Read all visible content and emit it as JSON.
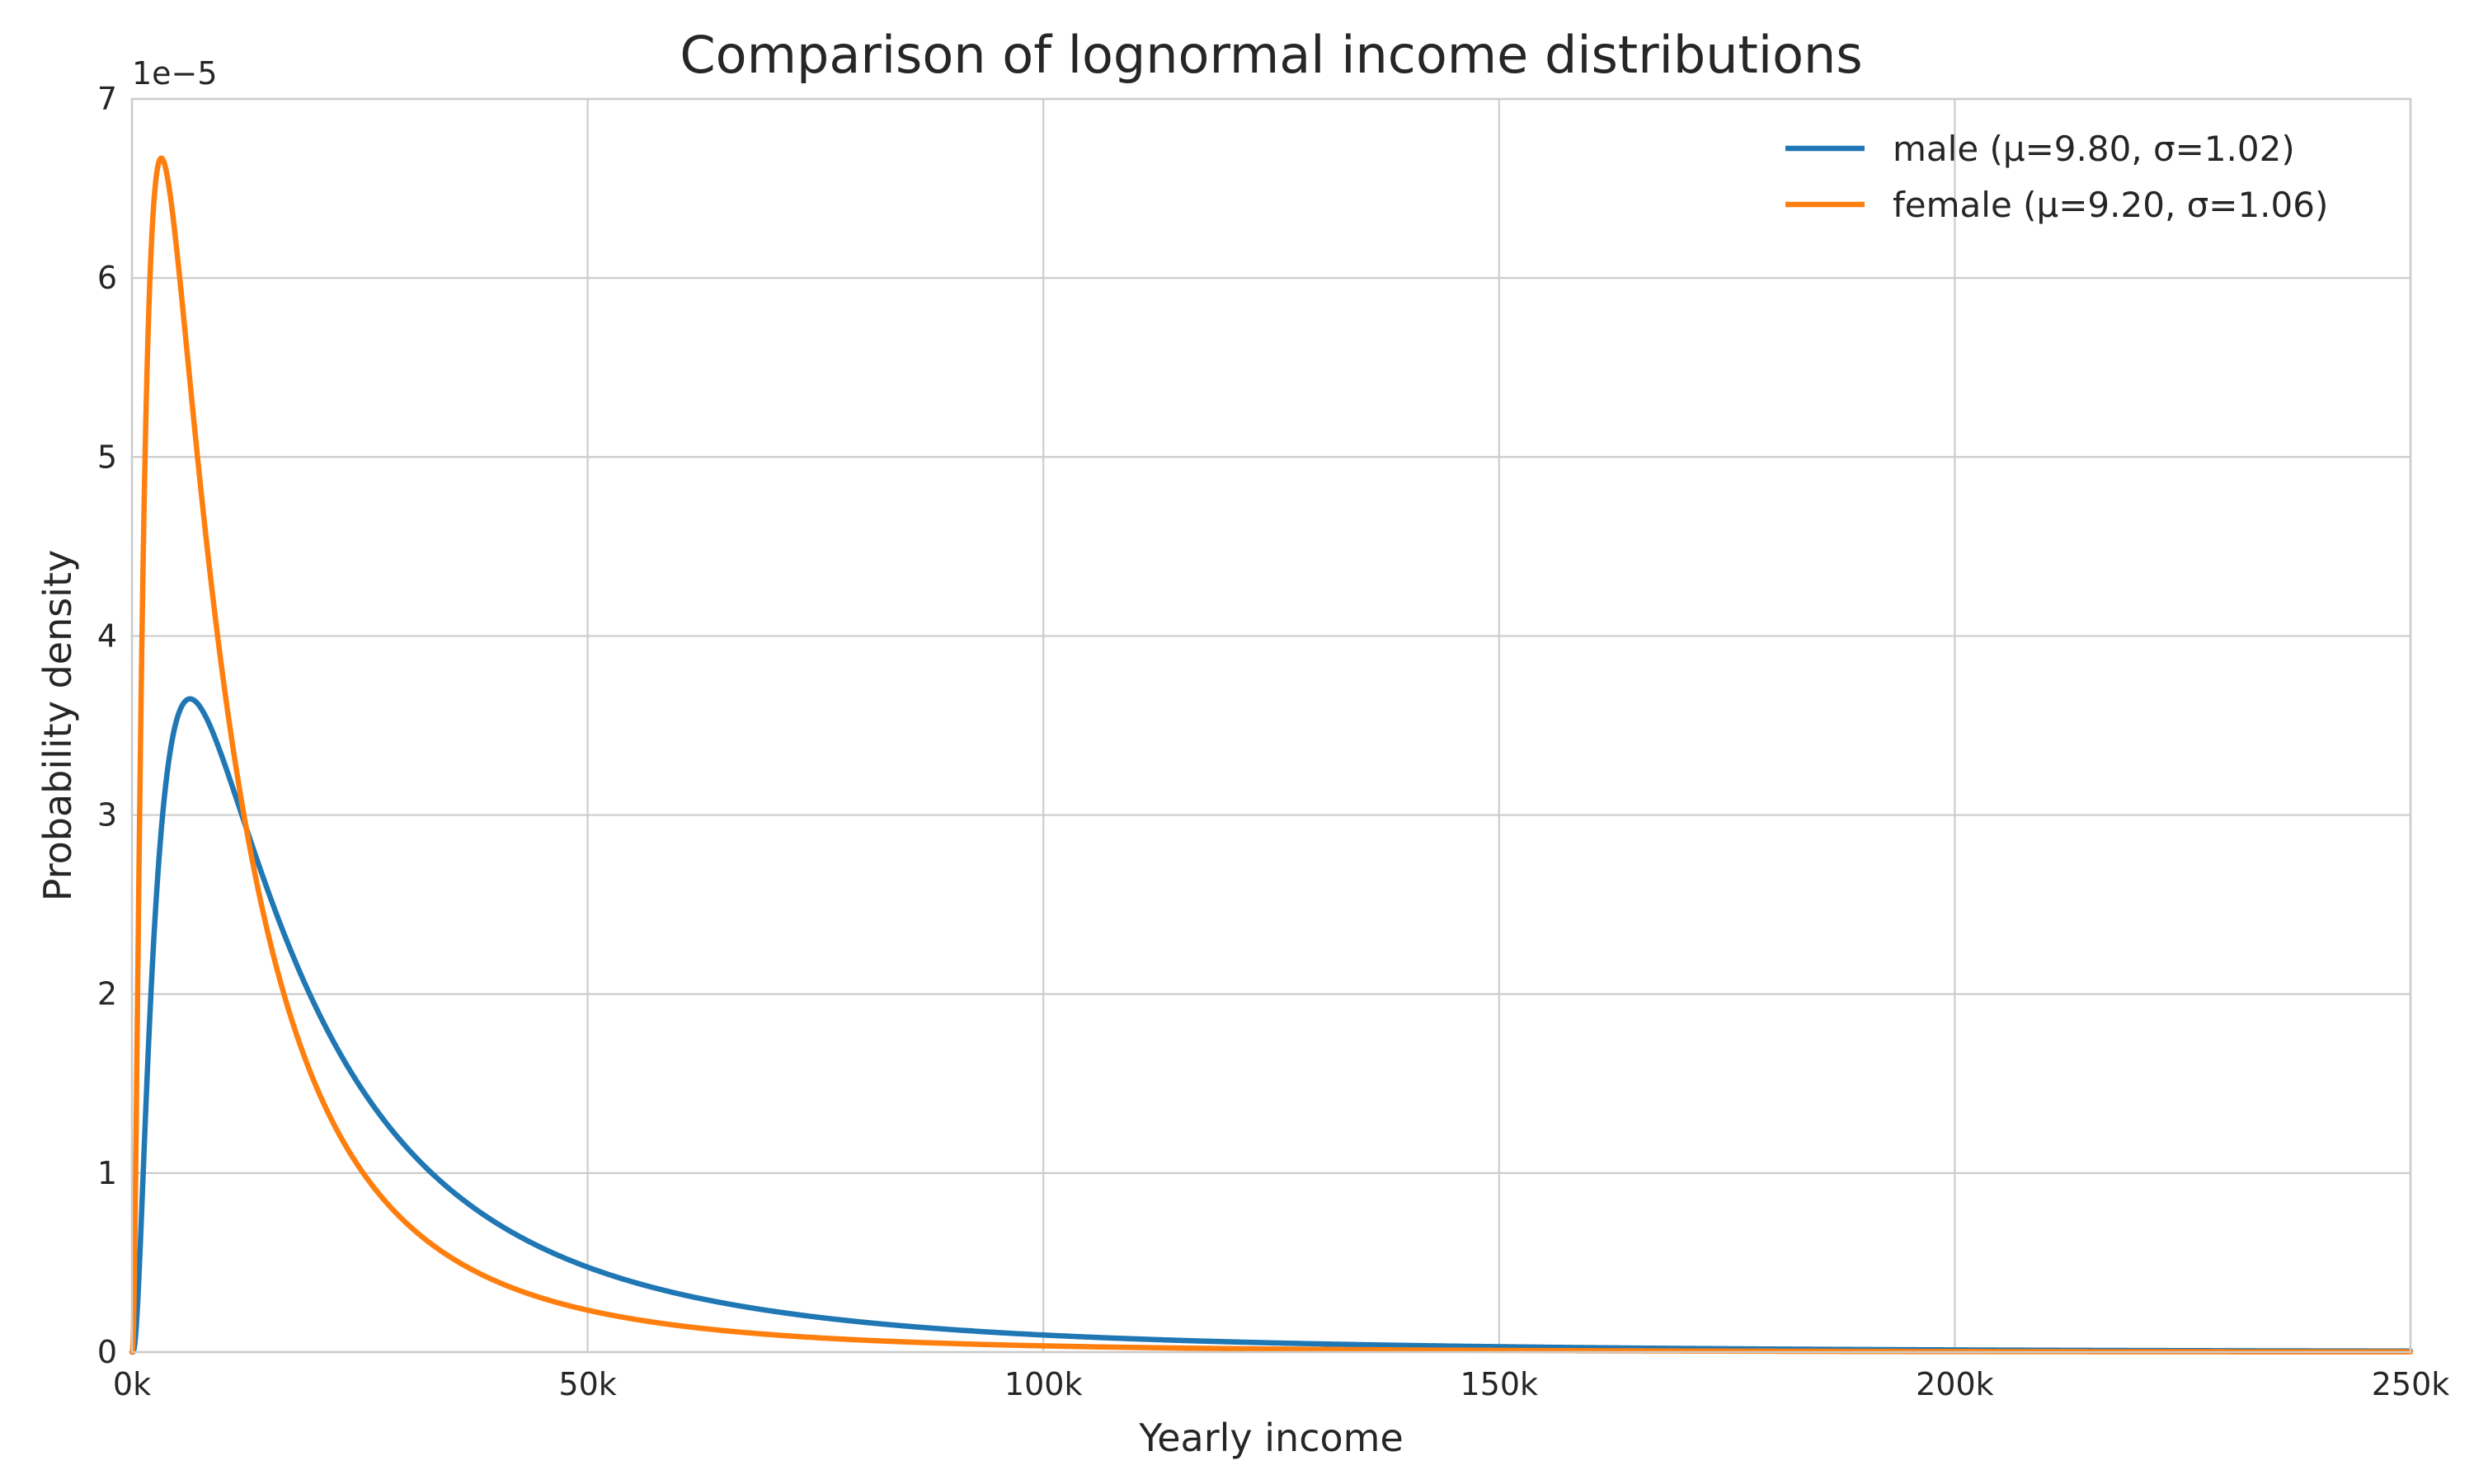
{
  "chart_data": {
    "type": "line",
    "title": "Comparison of lognormal income distributions",
    "xlabel": "Yearly income",
    "ylabel": "Probability density",
    "y_offset_label": "1e−5",
    "y_scale": 1e-05,
    "xlim": [
      0,
      250000
    ],
    "ylim": [
      0,
      7
    ],
    "x_ticks": [
      0,
      50000,
      100000,
      150000,
      200000,
      250000
    ],
    "x_tick_labels": [
      "0k",
      "50k",
      "100k",
      "150k",
      "200k",
      "250k"
    ],
    "y_ticks": [
      0,
      1,
      2,
      3,
      4,
      5,
      6,
      7
    ],
    "y_tick_labels": [
      "0",
      "1",
      "2",
      "3",
      "4",
      "5",
      "6",
      "7"
    ],
    "grid": true,
    "legend_position": "top-right",
    "series": [
      {
        "name": "male (μ=9.80, σ=1.02)",
        "distribution": "lognormal",
        "mu": 9.8,
        "sigma": 1.02,
        "color": "#1f77b4"
      },
      {
        "name": "female (μ=9.20, σ=1.06)",
        "distribution": "lognormal",
        "mu": 9.2,
        "sigma": 1.06,
        "color": "#ff7f0e"
      }
    ]
  }
}
